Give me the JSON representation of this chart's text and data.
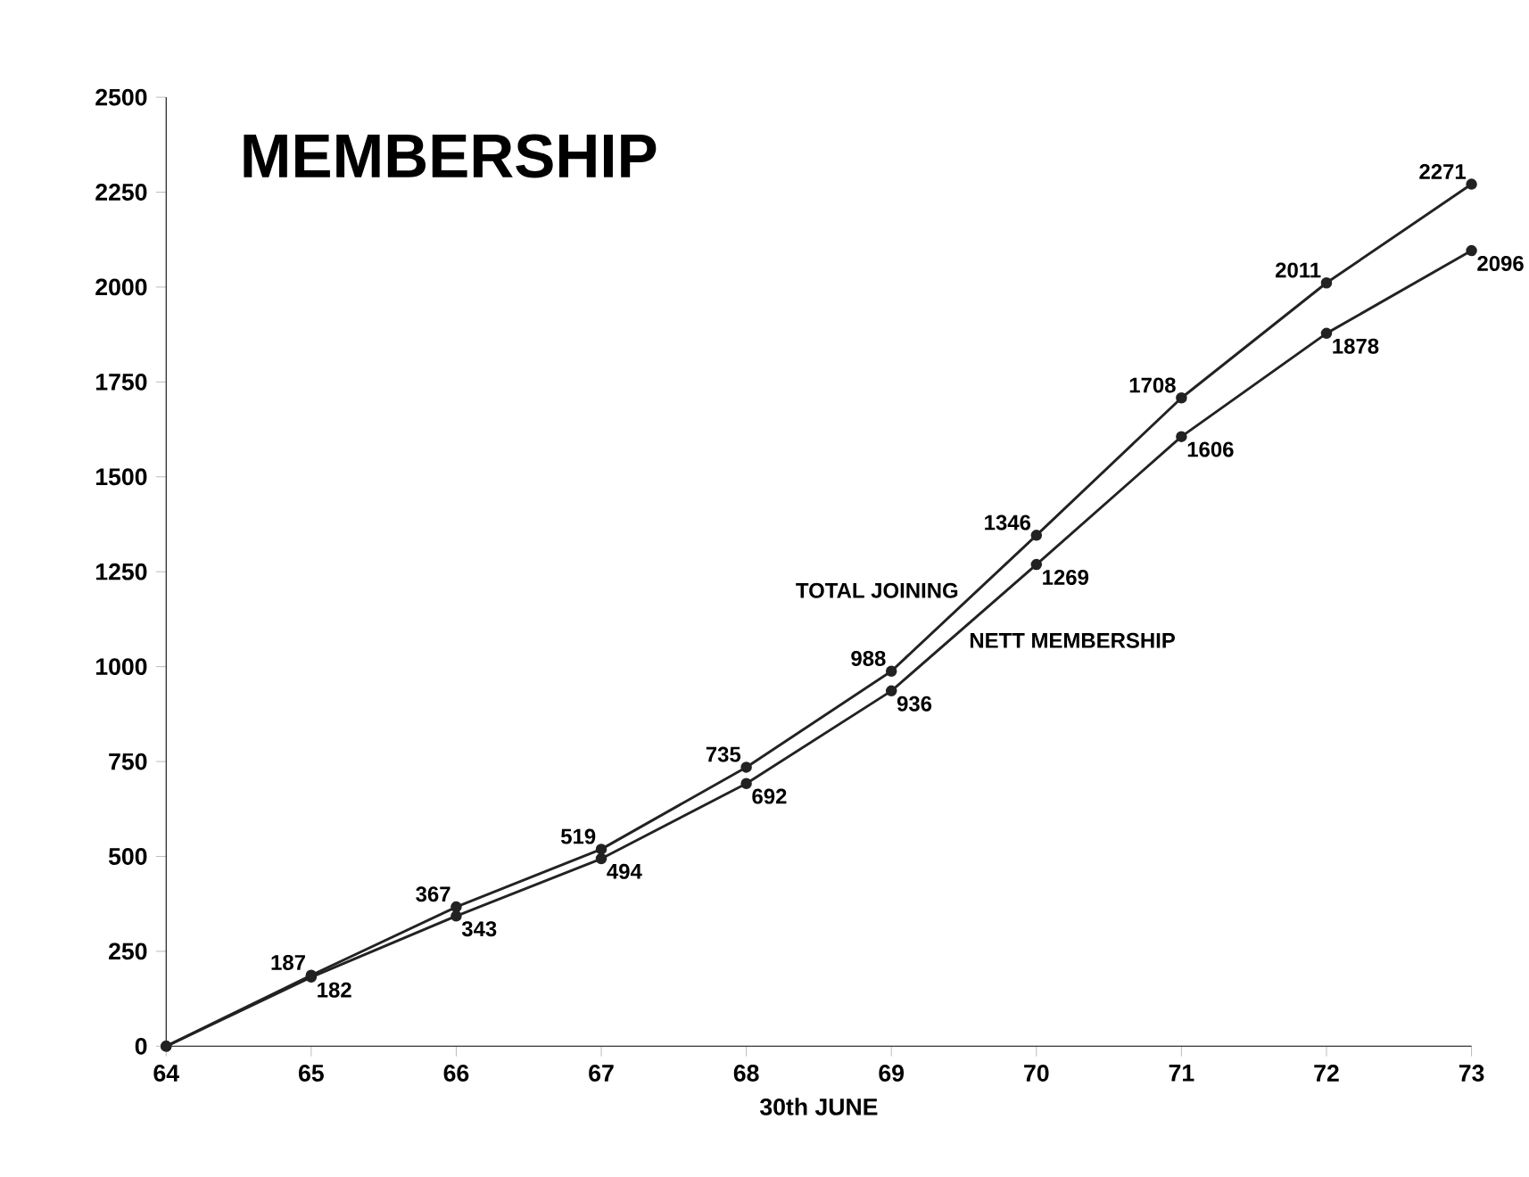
{
  "chart_data": {
    "type": "line",
    "title": "MEMBERSHIP",
    "xlabel": "30th JUNE",
    "x": [
      64,
      65,
      66,
      67,
      68,
      69,
      70,
      71,
      72,
      73
    ],
    "xlim": [
      64,
      73
    ],
    "xticks": [
      64,
      65,
      66,
      67,
      68,
      69,
      70,
      71,
      72,
      73
    ],
    "ylim": [
      0,
      2500
    ],
    "yticks": [
      0,
      250,
      500,
      750,
      1000,
      1250,
      1500,
      1750,
      2000,
      2250,
      2500
    ],
    "marker": "circle",
    "line_style": "solid",
    "series": [
      {
        "name": "TOTAL JOINING",
        "color": "#222222",
        "values": [
          0,
          187,
          367,
          519,
          735,
          988,
          1346,
          1708,
          2011,
          2271
        ],
        "value_labels": [
          null,
          "187",
          "367",
          "519",
          "735",
          "988",
          "1346",
          "1708",
          "2011",
          "2271"
        ]
      },
      {
        "name": "NETT MEMBERSHIP",
        "color": "#222222",
        "values": [
          0,
          182,
          343,
          494,
          692,
          936,
          1269,
          1606,
          1878,
          2096
        ],
        "value_labels": [
          null,
          "182",
          "343",
          "494",
          "692",
          "936",
          "1269",
          "1606",
          "1878",
          "2096"
        ]
      }
    ]
  }
}
